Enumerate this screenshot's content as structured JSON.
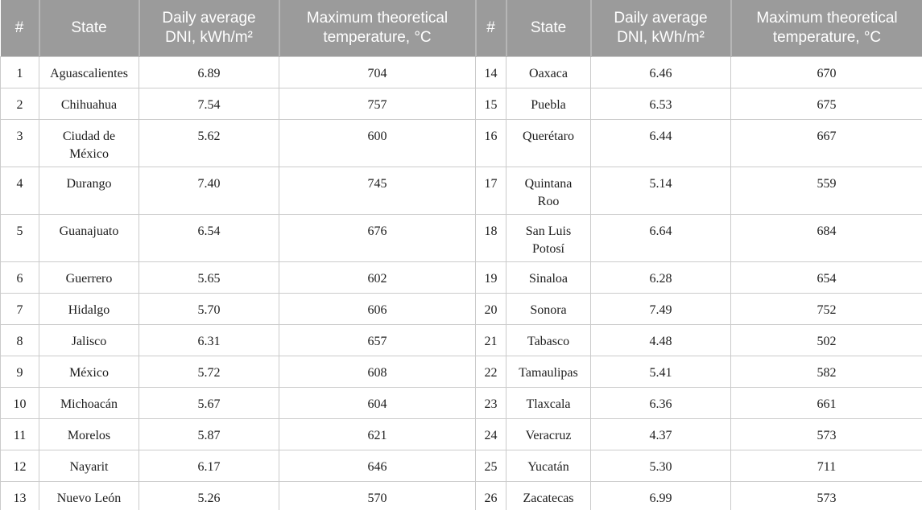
{
  "table": {
    "headers": [
      "#",
      "State",
      "Daily average DNI, kWh/m²",
      "Maximum theoretical temperature, °C",
      "#",
      "State",
      "Daily average DNI, kWh/m²",
      "Maximum theoretical temperature, °C"
    ],
    "rows": [
      [
        "1",
        "Aguascalientes",
        "6.89",
        "704",
        "14",
        "Oaxaca",
        "6.46",
        "670"
      ],
      [
        "2",
        "Chihuahua",
        "7.54",
        "757",
        "15",
        "Puebla",
        "6.53",
        "675"
      ],
      [
        "3",
        "Ciudad de México",
        "5.62",
        "600",
        "16",
        "Querétaro",
        "6.44",
        "667"
      ],
      [
        "4",
        "Durango",
        "7.40",
        "745",
        "17",
        "Quintana Roo",
        "5.14",
        "559"
      ],
      [
        "5",
        "Guanajuato",
        "6.54",
        "676",
        "18",
        "San Luis Potosí",
        "6.64",
        "684"
      ],
      [
        "6",
        "Guerrero",
        "5.65",
        "602",
        "19",
        "Sinaloa",
        "6.28",
        "654"
      ],
      [
        "7",
        "Hidalgo",
        "5.70",
        "606",
        "20",
        "Sonora",
        "7.49",
        "752"
      ],
      [
        "8",
        "Jalisco",
        "6.31",
        "657",
        "21",
        "Tabasco",
        "4.48",
        "502"
      ],
      [
        "9",
        "México",
        "5.72",
        "608",
        "22",
        "Tamaulipas",
        "5.41",
        "582"
      ],
      [
        "10",
        "Michoacán",
        "5.67",
        "604",
        "23",
        "Tlaxcala",
        "6.36",
        "661"
      ],
      [
        "11",
        "Morelos",
        "5.87",
        "621",
        "24",
        "Veracruz",
        "4.37",
        "573"
      ],
      [
        "12",
        "Nayarit",
        "6.17",
        "646",
        "25",
        "Yucatán",
        "5.30",
        "711"
      ],
      [
        "13",
        "Nuevo León",
        "5.26",
        "570",
        "26",
        "Zacatecas",
        "6.99",
        "573"
      ]
    ]
  },
  "chart_data": {
    "type": "table",
    "columns": [
      "#",
      "State",
      "Daily average DNI, kWh/m²",
      "Maximum theoretical temperature, °C"
    ],
    "records": [
      [
        1,
        "Aguascalientes",
        6.89,
        704
      ],
      [
        2,
        "Chihuahua",
        7.54,
        757
      ],
      [
        3,
        "Ciudad de México",
        5.62,
        600
      ],
      [
        4,
        "Durango",
        7.4,
        745
      ],
      [
        5,
        "Guanajuato",
        6.54,
        676
      ],
      [
        6,
        "Guerrero",
        5.65,
        602
      ],
      [
        7,
        "Hidalgo",
        5.7,
        606
      ],
      [
        8,
        "Jalisco",
        6.31,
        657
      ],
      [
        9,
        "México",
        5.72,
        608
      ],
      [
        10,
        "Michoacán",
        5.67,
        604
      ],
      [
        11,
        "Morelos",
        5.87,
        621
      ],
      [
        12,
        "Nayarit",
        6.17,
        646
      ],
      [
        13,
        "Nuevo León",
        5.26,
        570
      ],
      [
        14,
        "Oaxaca",
        6.46,
        670
      ],
      [
        15,
        "Puebla",
        6.53,
        675
      ],
      [
        16,
        "Querétaro",
        6.44,
        667
      ],
      [
        17,
        "Quintana Roo",
        5.14,
        559
      ],
      [
        18,
        "San Luis Potosí",
        6.64,
        684
      ],
      [
        19,
        "Sinaloa",
        6.28,
        654
      ],
      [
        20,
        "Sonora",
        7.49,
        752
      ],
      [
        21,
        "Tabasco",
        4.48,
        502
      ],
      [
        22,
        "Tamaulipas",
        5.41,
        582
      ],
      [
        23,
        "Tlaxcala",
        6.36,
        661
      ],
      [
        24,
        "Veracruz",
        4.37,
        573
      ],
      [
        25,
        "Yucatán",
        5.3,
        711
      ],
      [
        26,
        "Zacatecas",
        6.99,
        573
      ]
    ]
  },
  "colors": {
    "header_bg": "#9b9b9b",
    "header_text": "#ffffff",
    "header_divider": "#b6b6b6",
    "row_border": "#cbcbcb",
    "bottom_border": "#a6a6a6",
    "body_text": "#1d1d1d",
    "body_bg": "#ffffff"
  }
}
